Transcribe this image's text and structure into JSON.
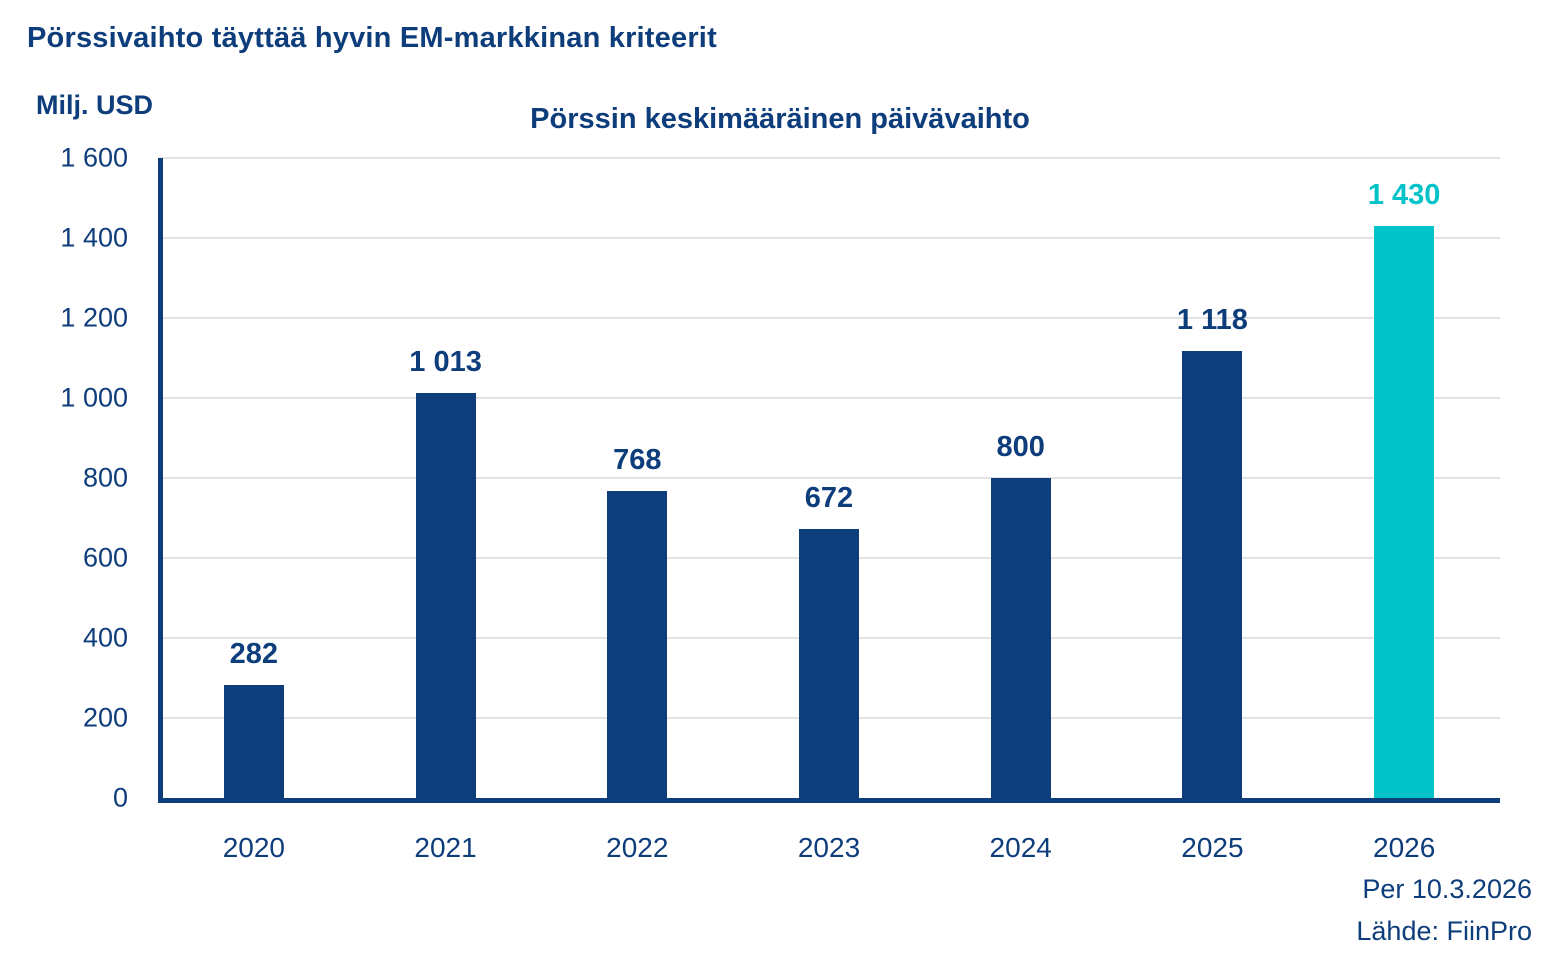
{
  "page": {
    "title": "Pörssivaihto täyttää hyvin EM-markkinan kriteerit",
    "y_axis_unit": "Milj. USD",
    "footer": {
      "as_of": "Per 10.3.2026",
      "source": "Lähde: FiinPro"
    }
  },
  "colors": {
    "navy": "#0e3d7b",
    "teal": "#00c2c9",
    "grid": "#e3e3e3",
    "background": "#ffffff"
  },
  "chart_data": {
    "type": "bar",
    "title": "Pörssin keskimääräinen päivävaihto",
    "xlabel": "",
    "ylabel": "Milj. USD",
    "ylim": [
      0,
      1600
    ],
    "grid": true,
    "legend_position": "none",
    "categories": [
      "2020",
      "2021",
      "2022",
      "2023",
      "2024",
      "2025",
      "2026"
    ],
    "values": [
      282,
      1013,
      768,
      672,
      800,
      1118,
      1430
    ],
    "value_labels": [
      "282",
      "1 013",
      "768",
      "672",
      "800",
      "1 118",
      "1 430"
    ],
    "yticks": [
      {
        "value": 0,
        "label": "0"
      },
      {
        "value": 200,
        "label": "200"
      },
      {
        "value": 400,
        "label": "400"
      },
      {
        "value": 600,
        "label": "600"
      },
      {
        "value": 800,
        "label": "800"
      },
      {
        "value": 1000,
        "label": "1 000"
      },
      {
        "value": 1200,
        "label": "1 200"
      },
      {
        "value": 1400,
        "label": "1 400"
      },
      {
        "value": 1600,
        "label": "1 600"
      }
    ],
    "highlight_index": 6,
    "bar_color": "#0e3d7b",
    "highlight_color": "#00c2c9"
  }
}
